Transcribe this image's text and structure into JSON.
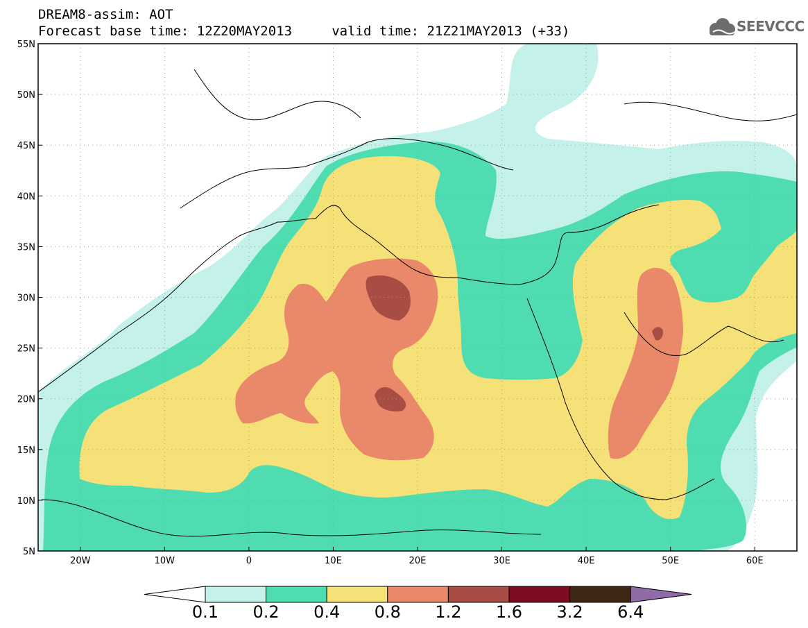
{
  "title": {
    "line1": "DREAM8-assim: AOT",
    "line2": "Forecast base time: 12Z20MAY2013     valid time: 21Z21MAY2013 (+33)"
  },
  "logo": {
    "text": "SEEVCCC",
    "icon": "cloud-icon",
    "color": "#6d6d6d"
  },
  "map": {
    "lon_range": [
      -25,
      65
    ],
    "lat_range": [
      5,
      55
    ],
    "lat_ticks": [
      "55N",
      "50N",
      "45N",
      "40N",
      "35N",
      "30N",
      "25N",
      "20N",
      "15N",
      "10N",
      "5N"
    ],
    "lon_ticks": [
      "20W",
      "10W",
      "0",
      "10E",
      "20E",
      "30E",
      "40E",
      "50E",
      "60E"
    ],
    "grid": "dotted"
  },
  "colorbar": {
    "labels": [
      "0.1",
      "0.2",
      "0.4",
      "0.8",
      "1.2",
      "1.6",
      "3.2",
      "6.4"
    ],
    "colors": [
      "#ffffff",
      "#c4f1ea",
      "#4fdcb1",
      "#f5e178",
      "#e9896a",
      "#a84d44",
      "#7d0c22",
      "#3e2714",
      "#8f6ca8"
    ]
  }
}
